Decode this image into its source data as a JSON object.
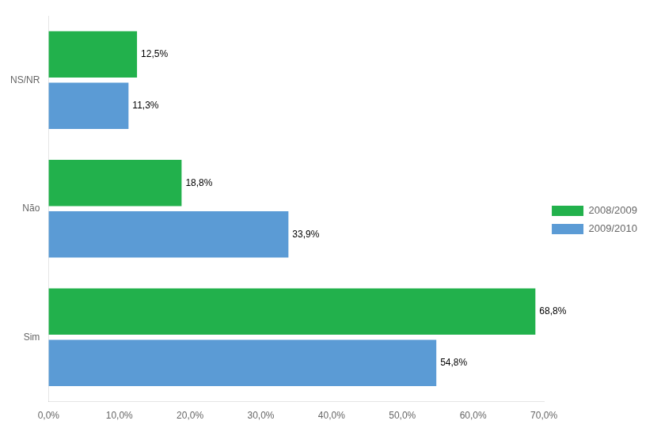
{
  "chart_data": {
    "type": "bar",
    "orientation": "horizontal",
    "categories": [
      "Sim",
      "Não",
      "NS/NR"
    ],
    "series": [
      {
        "name": "2008/2009",
        "color": "#22b14c",
        "values": [
          68.8,
          18.8,
          12.5
        ],
        "value_labels": [
          "68,8%",
          "18,8%",
          "12,5%"
        ]
      },
      {
        "name": "2009/2010",
        "color": "#5b9bd5",
        "values": [
          54.8,
          33.9,
          11.3
        ],
        "value_labels": [
          "54,8%",
          "33,9%",
          "11,3%"
        ]
      }
    ],
    "xlim": [
      0,
      70
    ],
    "xticks": [
      {
        "value": 0,
        "label": "0,0%"
      },
      {
        "value": 10,
        "label": "10,0%"
      },
      {
        "value": 20,
        "label": "20,0%"
      },
      {
        "value": 30,
        "label": "30,0%"
      },
      {
        "value": 40,
        "label": "40,0%"
      },
      {
        "value": 50,
        "label": "50,0%"
      },
      {
        "value": 60,
        "label": "60,0%"
      },
      {
        "value": 70,
        "label": "70,0%"
      }
    ],
    "data_labels": true,
    "grid": false,
    "legend": "right"
  }
}
